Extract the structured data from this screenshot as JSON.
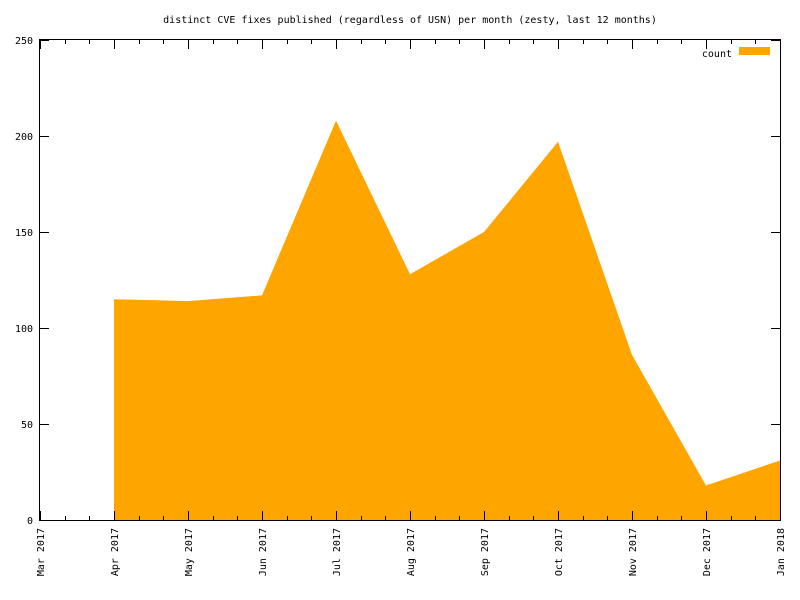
{
  "chart_data": {
    "type": "area",
    "title": "distinct CVE fixes published (regardless of USN) per month (zesty, last 12 months)",
    "xlabel": "",
    "ylabel": "",
    "x_ticks": [
      "Mar 2017",
      "Apr 2017",
      "May 2017",
      "Jun 2017",
      "Jul 2017",
      "Aug 2017",
      "Sep 2017",
      "Oct 2017",
      "Nov 2017",
      "Dec 2017",
      "Jan 2018"
    ],
    "y_ticks": [
      "0",
      "50",
      "100",
      "150",
      "200",
      "250"
    ],
    "ylim": [
      0,
      250
    ],
    "grid": false,
    "legend_position": "top-right",
    "color": "#ffa500",
    "series": [
      {
        "name": "count",
        "x": [
          "Apr 2017",
          "May 2017",
          "Jun 2017",
          "Jul 2017",
          "Aug 2017",
          "Sep 2017",
          "Oct 2017",
          "Nov 2017",
          "Dec 2017",
          "Jan 2018"
        ],
        "values": [
          115,
          114,
          117,
          208,
          128,
          150,
          197,
          86,
          18,
          31
        ]
      }
    ]
  }
}
